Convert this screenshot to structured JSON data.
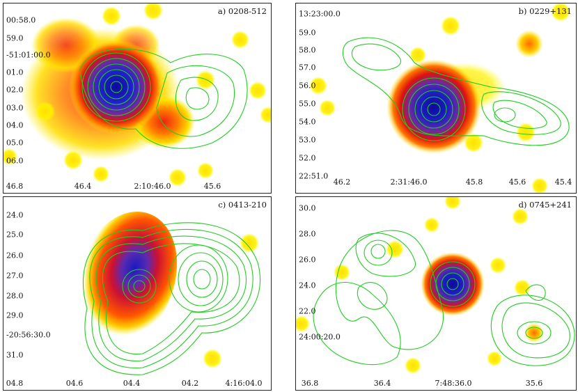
{
  "panels": [
    {
      "id": "a",
      "title": "a) 0208-512",
      "y_labels": [
        "00:58.0",
        "59.0",
        "-51:01:00.0",
        "01.0",
        "02.0",
        "03.0",
        "04.0",
        "05.0",
        "06.0"
      ],
      "x_labels": [
        "46.8",
        "46.4",
        "2:10:46.0",
        "45.6"
      ]
    },
    {
      "id": "b",
      "title": "b) 0229+131",
      "y_labels": [
        "13:23:00.0",
        "59.0",
        "58.0",
        "57.0",
        "56.0",
        "55.0",
        "54.0",
        "53.0",
        "52.0",
        "22:51.0"
      ],
      "x_labels": [
        "46.2",
        "2:31:46.0",
        "45.8",
        "45.6",
        "45.4"
      ]
    },
    {
      "id": "c",
      "title": "c) 0413-210",
      "y_labels": [
        "24.0",
        "25.0",
        "26.0",
        "27.0",
        "28.0",
        "29.0",
        "-20:56:30.0",
        "31.0"
      ],
      "x_labels": [
        "04.8",
        "04.6",
        "04.4",
        "04.2",
        "4:16:04.0"
      ]
    },
    {
      "id": "d",
      "title": "d) 0745+241",
      "y_labels": [
        "30.0",
        "28.0",
        "26.0",
        "24.0",
        "22.0",
        "24:00:20.0"
      ],
      "x_labels": [
        "36.8",
        "36.4",
        "7:48:36.0",
        "35.6"
      ]
    }
  ],
  "colors": {
    "contour": "#22cc22",
    "core": "#0000aa",
    "emission_high": "#dd1111",
    "emission_mid": "#ff7700",
    "emission_low": "#ffee00",
    "background": "#ffffff"
  }
}
